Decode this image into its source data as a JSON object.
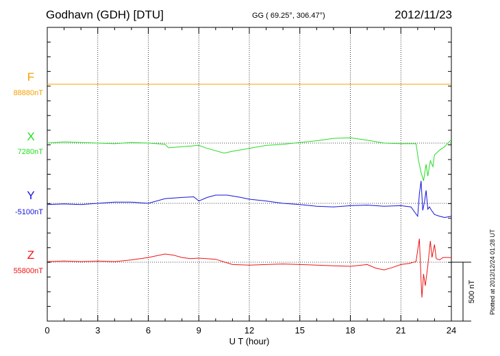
{
  "header": {
    "station": "Godhavn (GDH)  [DTU]",
    "coords": "GG ( 69.25°, 306.47°)",
    "date": "2012/11/23"
  },
  "side_note": "Plotted at 2012/12/24 01:28 UT",
  "chart_data": {
    "type": "line",
    "xlabel": "U T (hour)",
    "xlim": [
      0,
      24
    ],
    "xticks": [
      "0",
      "3",
      "6",
      "9",
      "12",
      "15",
      "18",
      "21",
      "24"
    ],
    "grid": true,
    "scale_bar": "500 nT",
    "series": [
      {
        "name": "F",
        "baseline": "88880nT",
        "color": "#f5a000",
        "points": [
          [
            0,
            0
          ],
          [
            24,
            0
          ]
        ]
      },
      {
        "name": "X",
        "baseline": "7280nT",
        "color": "#22dd22",
        "points": [
          [
            0,
            0
          ],
          [
            1,
            10
          ],
          [
            2,
            5
          ],
          [
            3,
            0
          ],
          [
            4,
            -5
          ],
          [
            5,
            5
          ],
          [
            6,
            0
          ],
          [
            7,
            -10
          ],
          [
            7.2,
            -40
          ],
          [
            8,
            -30
          ],
          [
            9,
            -20
          ],
          [
            9.5,
            -45
          ],
          [
            10.5,
            -85
          ],
          [
            11,
            -70
          ],
          [
            12,
            -45
          ],
          [
            13,
            -20
          ],
          [
            14,
            -10
          ],
          [
            15,
            5
          ],
          [
            16,
            20
          ],
          [
            17,
            40
          ],
          [
            18,
            45
          ],
          [
            19,
            25
          ],
          [
            20,
            0
          ],
          [
            21,
            -5
          ],
          [
            21.9,
            -5
          ],
          [
            22.05,
            -150
          ],
          [
            22.2,
            -250
          ],
          [
            22.35,
            -320
          ],
          [
            22.5,
            -180
          ],
          [
            22.6,
            -280
          ],
          [
            22.75,
            -150
          ],
          [
            22.9,
            -200
          ],
          [
            23,
            -100
          ],
          [
            23.3,
            -60
          ],
          [
            23.6,
            -30
          ],
          [
            24,
            30
          ]
        ]
      },
      {
        "name": "Y",
        "baseline": "-5100nT",
        "color": "#1111dd",
        "points": [
          [
            0,
            -10
          ],
          [
            1,
            -5
          ],
          [
            2,
            -10
          ],
          [
            3,
            0
          ],
          [
            4,
            10
          ],
          [
            5,
            10
          ],
          [
            6,
            0
          ],
          [
            7,
            40
          ],
          [
            8,
            50
          ],
          [
            8.7,
            55
          ],
          [
            9,
            20
          ],
          [
            9.5,
            50
          ],
          [
            10,
            70
          ],
          [
            10.7,
            70
          ],
          [
            11.5,
            50
          ],
          [
            12,
            35
          ],
          [
            13,
            20
          ],
          [
            14,
            0
          ],
          [
            15,
            -10
          ],
          [
            16,
            -25
          ],
          [
            17,
            -30
          ],
          [
            18,
            -20
          ],
          [
            19,
            -15
          ],
          [
            20,
            -25
          ],
          [
            21,
            -20
          ],
          [
            21.6,
            -30
          ],
          [
            22,
            -110
          ],
          [
            22.1,
            80
          ],
          [
            22.2,
            190
          ],
          [
            22.3,
            -60
          ],
          [
            22.4,
            10
          ],
          [
            22.5,
            110
          ],
          [
            22.6,
            -50
          ],
          [
            22.7,
            -30
          ],
          [
            22.8,
            -55
          ],
          [
            23,
            -95
          ],
          [
            23.3,
            -110
          ],
          [
            23.6,
            -120
          ],
          [
            24,
            -110
          ]
        ]
      },
      {
        "name": "Z",
        "baseline": "55800nT",
        "color": "#ee1111",
        "points": [
          [
            0,
            5
          ],
          [
            1,
            10
          ],
          [
            2,
            5
          ],
          [
            3,
            10
          ],
          [
            4,
            5
          ],
          [
            5,
            20
          ],
          [
            6,
            40
          ],
          [
            7,
            70
          ],
          [
            7.5,
            60
          ],
          [
            8,
            40
          ],
          [
            8.5,
            30
          ],
          [
            9,
            35
          ],
          [
            10,
            25
          ],
          [
            11,
            -20
          ],
          [
            12,
            -25
          ],
          [
            13,
            -20
          ],
          [
            14,
            -15
          ],
          [
            15,
            -20
          ],
          [
            16,
            -25
          ],
          [
            17,
            -30
          ],
          [
            18,
            -35
          ],
          [
            19,
            -20
          ],
          [
            19.5,
            -50
          ],
          [
            20,
            -65
          ],
          [
            20.5,
            -45
          ],
          [
            21,
            -20
          ],
          [
            21.5,
            -10
          ],
          [
            21.9,
            5
          ],
          [
            22.1,
            200
          ],
          [
            22.2,
            -160
          ],
          [
            22.25,
            -300
          ],
          [
            22.35,
            -100
          ],
          [
            22.45,
            -200
          ],
          [
            22.6,
            -30
          ],
          [
            22.75,
            180
          ],
          [
            22.85,
            40
          ],
          [
            23,
            150
          ],
          [
            23.1,
            30
          ],
          [
            23.3,
            20
          ],
          [
            23.5,
            40
          ],
          [
            24,
            40
          ]
        ]
      }
    ]
  }
}
